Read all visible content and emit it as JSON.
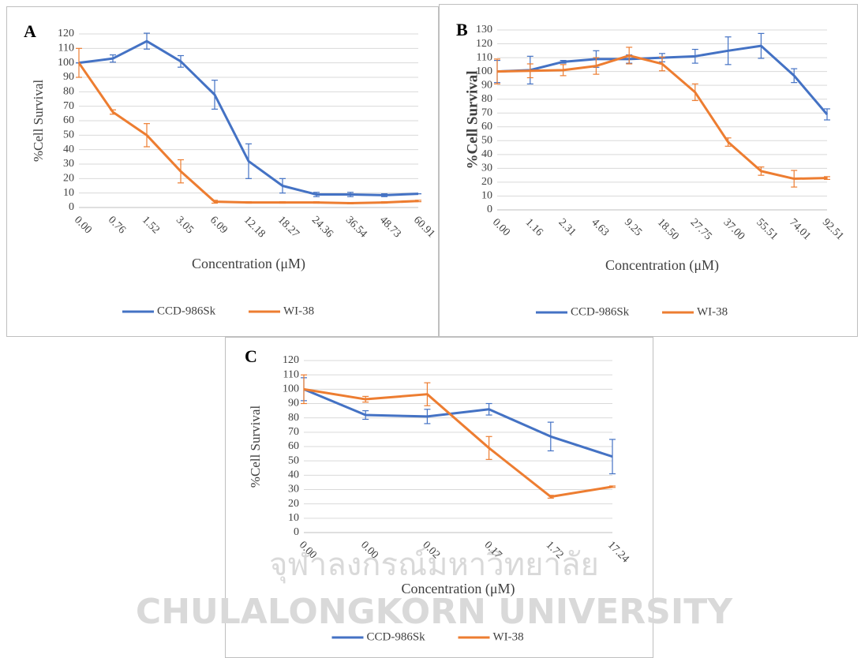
{
  "chart_data": [
    {
      "type": "line",
      "panel_label": "A",
      "y_label": "%Cell Survival",
      "x_label": "Concentration (μM)",
      "categories": [
        "0.00",
        "0.76",
        "1.52",
        "3.05",
        "6.09",
        "12.18",
        "18.27",
        "24.36",
        "36.54",
        "48.73",
        "60.91"
      ],
      "series": [
        {
          "name": "CCD-986Sk",
          "color": "#4472c4",
          "values": [
            100,
            103,
            115,
            101,
            78,
            32,
            15,
            9,
            9,
            8.5,
            9.5
          ],
          "errors": [
            0,
            2.5,
            5.5,
            4,
            10,
            12,
            5,
            1.5,
            1.5,
            1,
            0
          ]
        },
        {
          "name": "WI-38",
          "color": "#ed7d31",
          "values": [
            100,
            66,
            50,
            25,
            4,
            3.5,
            3.5,
            3.5,
            3,
            3.5,
            4.5
          ],
          "errors": [
            10,
            1.5,
            8,
            8,
            1,
            0.5,
            0.5,
            0.5,
            0.5,
            0.5,
            0.5
          ]
        }
      ],
      "ylim": [
        0,
        120
      ],
      "yticks": [
        0,
        10,
        20,
        30,
        40,
        50,
        60,
        70,
        80,
        90,
        100,
        110,
        120
      ],
      "grid": true,
      "legend": "bottom"
    },
    {
      "type": "line",
      "panel_label": "B",
      "y_label": "%Cell Survival",
      "x_label": "Concentration (μM)",
      "categories": [
        "0.00",
        "1.16",
        "2.31",
        "4.63",
        "9.25",
        "18.50",
        "27.75",
        "37.00",
        "55.51",
        "74.01",
        "92.51"
      ],
      "series": [
        {
          "name": "CCD-986Sk",
          "color": "#4472c4",
          "values": [
            100,
            101,
            107,
            109,
            109,
            110,
            111,
            115,
            118.5,
            97,
            69
          ],
          "errors": [
            8,
            10,
            1,
            6,
            3,
            3,
            5,
            10,
            9,
            5,
            4
          ]
        },
        {
          "name": "WI-38",
          "color": "#ed7d31",
          "values": [
            100,
            100.5,
            101,
            104,
            111.5,
            105.5,
            85,
            49,
            28,
            22.5,
            23
          ],
          "errors": [
            9,
            5,
            4,
            6,
            6,
            5,
            6,
            3,
            3,
            6,
            1
          ]
        }
      ],
      "ylim": [
        0,
        130
      ],
      "yticks": [
        0,
        10,
        20,
        30,
        40,
        50,
        60,
        70,
        80,
        90,
        100,
        110,
        120,
        130
      ],
      "grid": true,
      "legend": "bottom"
    },
    {
      "type": "line",
      "panel_label": "C",
      "y_label": "%Cell Survival",
      "x_label": "Concentration (μM)",
      "categories": [
        "0.00",
        "0.00",
        "0.02",
        "0.17",
        "1.72",
        "17.24"
      ],
      "series": [
        {
          "name": "CCD-986Sk",
          "color": "#4472c4",
          "values": [
            100,
            82,
            81,
            86,
            67,
            53
          ],
          "errors": [
            8,
            3,
            5,
            4,
            10,
            12
          ]
        },
        {
          "name": "WI-38",
          "color": "#ed7d31",
          "values": [
            100,
            93,
            96.5,
            59,
            25,
            32
          ],
          "errors": [
            10,
            2,
            8,
            8,
            1,
            0.5
          ]
        }
      ],
      "ylim": [
        0,
        120
      ],
      "yticks": [
        0,
        10,
        20,
        30,
        40,
        50,
        60,
        70,
        80,
        90,
        100,
        110,
        120
      ],
      "grid": true,
      "legend": "bottom"
    }
  ],
  "watermark": {
    "thai": "จุฬาลงกรณ์มหาวิทยาลัย",
    "english": "CHULALONGKORN UNIVERSITY"
  }
}
